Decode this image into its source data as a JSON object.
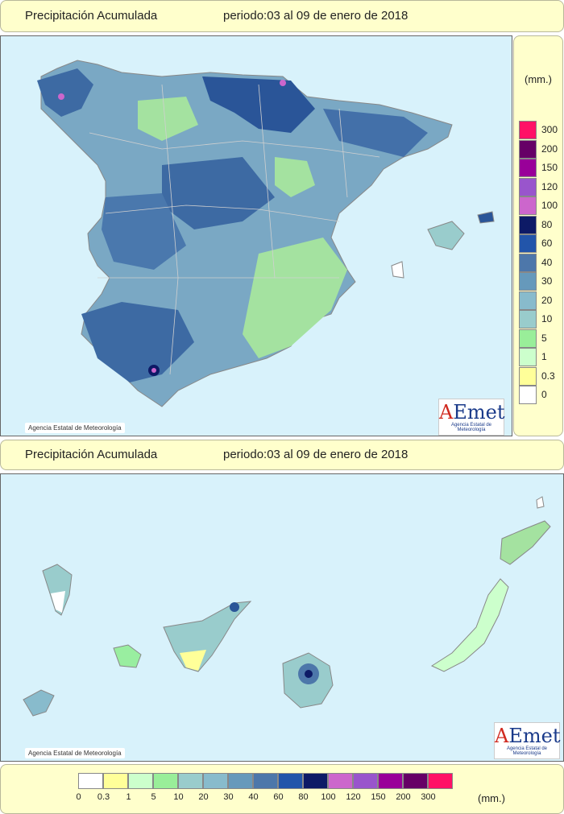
{
  "top_panel": {
    "title": "Precipitación Acumulada",
    "period": "periodo:03 al 09 de enero de 2018",
    "credit": "Agencia Estatal de Meteorología",
    "logo_text": "AEmet",
    "logo_sub": "Agencia Estatal de Meteorología"
  },
  "bottom_panel": {
    "title": "Precipitación Acumulada",
    "period": "periodo:03 al 09 de enero de 2018",
    "credit": "Agencia Estatal de Meteorología",
    "logo_text": "AEmet",
    "logo_sub": "Agencia Estatal de Meteorología"
  },
  "legend": {
    "unit": "(mm.)",
    "classes": [
      {
        "label": "0",
        "color": "#ffffff"
      },
      {
        "label": "0.3",
        "color": "#ffff99"
      },
      {
        "label": "1",
        "color": "#ccffcc"
      },
      {
        "label": "5",
        "color": "#99ee99"
      },
      {
        "label": "10",
        "color": "#99cccc"
      },
      {
        "label": "20",
        "color": "#88bbcc"
      },
      {
        "label": "30",
        "color": "#6699bb"
      },
      {
        "label": "40",
        "color": "#4d77aa"
      },
      {
        "label": "60",
        "color": "#2255aa"
      },
      {
        "label": "80",
        "color": "#0d1a66"
      },
      {
        "label": "100",
        "color": "#cc66cc"
      },
      {
        "label": "120",
        "color": "#9955cc"
      },
      {
        "label": "150",
        "color": "#990099"
      },
      {
        "label": "200",
        "color": "#660066"
      },
      {
        "label": "300",
        "color": "#ff1166"
      }
    ]
  }
}
